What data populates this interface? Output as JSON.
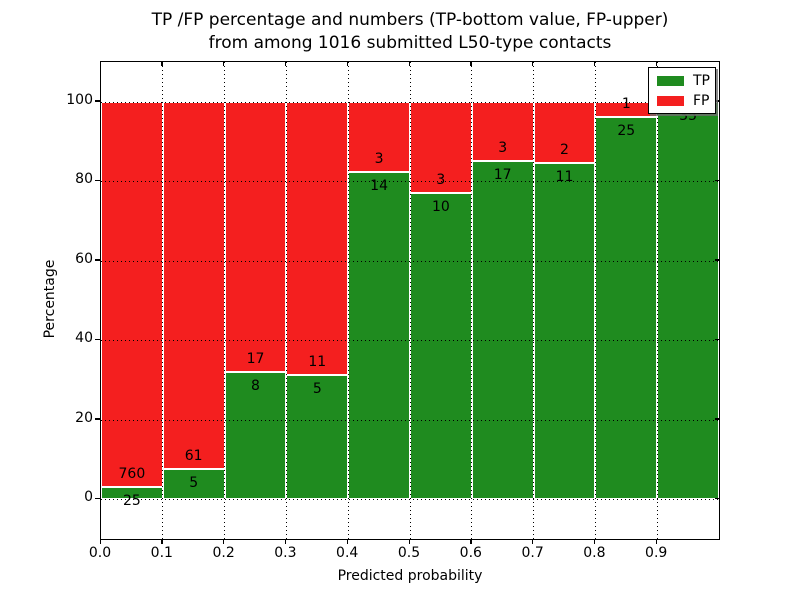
{
  "figure": {
    "title_line1": "TP /FP percentage and numbers (TP-bottom value, FP-upper)",
    "title_line2": "from among 1016 submitted L50-type contacts"
  },
  "chart_data": {
    "type": "bar",
    "stacked": true,
    "normalized_to_percent": true,
    "title": "TP /FP percentage and numbers (TP-bottom value, FP-upper) from among 1016 submitted L50-type contacts",
    "xlabel": "Predicted probability",
    "ylabel": "Percentage",
    "x_tick_labels": [
      "0.0",
      "0.1",
      "0.2",
      "0.3",
      "0.4",
      "0.5",
      "0.6",
      "0.7",
      "0.8",
      "0.9"
    ],
    "y_tick_labels": [
      "0",
      "20",
      "40",
      "60",
      "80",
      "100"
    ],
    "y_tick_values": [
      0,
      20,
      40,
      60,
      80,
      100
    ],
    "ylim": [
      -10,
      110
    ],
    "xlim": [
      0,
      1
    ],
    "grid": "dotted",
    "total_contacts": 1016,
    "categories": [
      "0.0-0.1",
      "0.1-0.2",
      "0.2-0.3",
      "0.3-0.4",
      "0.4-0.5",
      "0.5-0.6",
      "0.6-0.7",
      "0.7-0.8",
      "0.8-0.9",
      "0.9-1.0"
    ],
    "series": [
      {
        "name": "TP",
        "counts": [
          25,
          5,
          8,
          5,
          14,
          10,
          17,
          11,
          25,
          35
        ]
      },
      {
        "name": "FP",
        "counts": [
          760,
          61,
          17,
          11,
          3,
          3,
          3,
          2,
          1,
          0
        ]
      }
    ],
    "legend": {
      "position": "upper-right",
      "entries": [
        {
          "label": "TP",
          "color": "#1f8b1f"
        },
        {
          "label": "FP",
          "color": "#f41f1f"
        }
      ]
    }
  },
  "colors": {
    "tp": "#1f8b1f",
    "fp": "#f41f1f",
    "background": "#ffffff",
    "text": "#000000"
  }
}
